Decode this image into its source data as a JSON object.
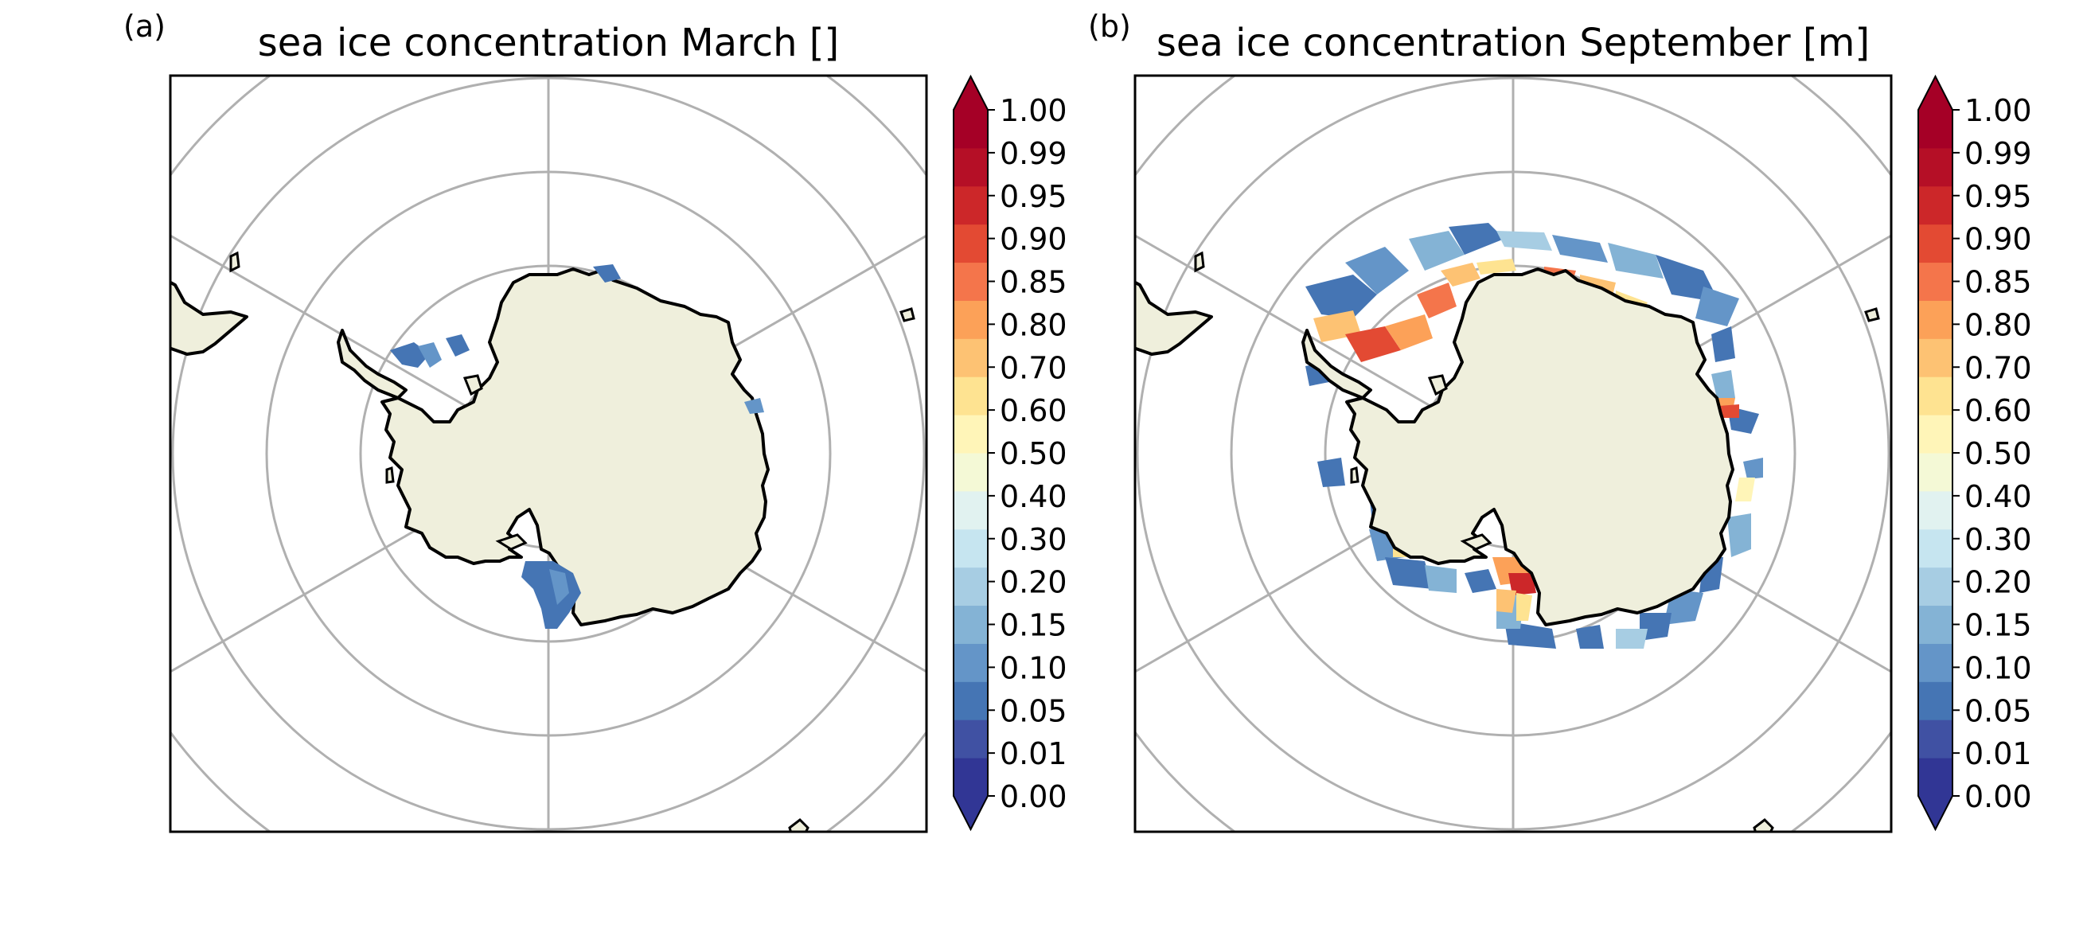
{
  "panels": [
    {
      "label": "(a)",
      "title": "sea ice concentration March []",
      "month": "March"
    },
    {
      "label": "(b)",
      "title": "sea ice concentration September [m]",
      "month": "September"
    }
  ],
  "colorbar": {
    "ticks": [
      "0.00",
      "0.01",
      "0.05",
      "0.10",
      "0.15",
      "0.20",
      "0.30",
      "0.40",
      "0.50",
      "0.60",
      "0.70",
      "0.80",
      "0.85",
      "0.90",
      "0.95",
      "0.99",
      "1.00"
    ],
    "colors": [
      "#313695",
      "#4051a3",
      "#4575b4",
      "#6495c8",
      "#84b3d5",
      "#a7cde3",
      "#c6e5f0",
      "#e1f2f0",
      "#f4f9d6",
      "#fff5b8",
      "#fee391",
      "#fdc273",
      "#fca158",
      "#f4754b",
      "#e34a33",
      "#cc2729",
      "#b50f26",
      "#a50026"
    ],
    "extend": "both"
  },
  "colors": {
    "land": "#efefdc",
    "coast": "#000000",
    "grid": "#b0b0b0",
    "frame": "#000000"
  },
  "map": {
    "projection": "south-polar-stereographic",
    "graticule_rings": 4,
    "meridian_spokes": 6
  }
}
